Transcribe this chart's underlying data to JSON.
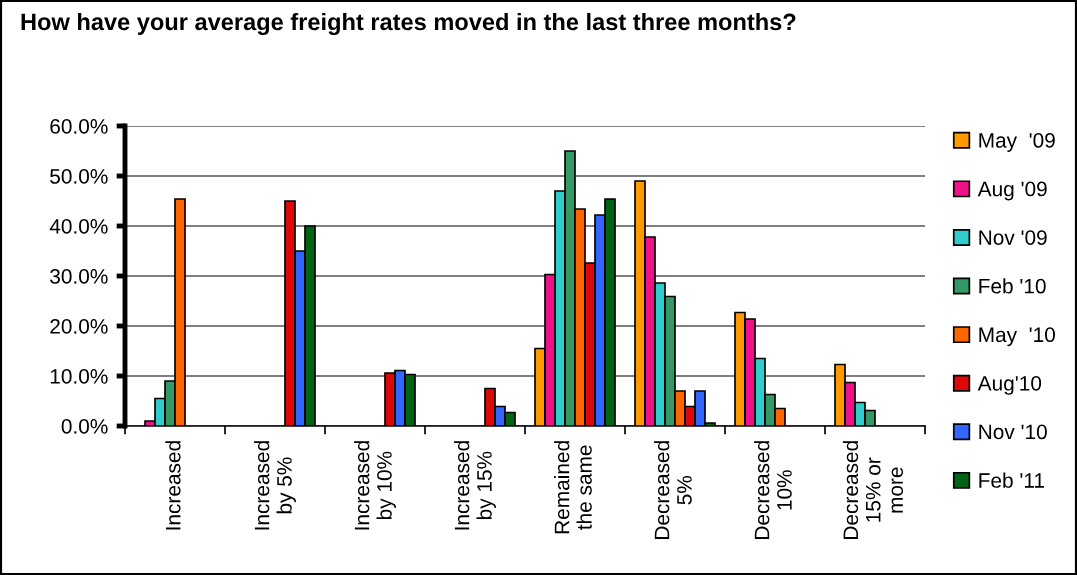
{
  "chart_data": {
    "type": "bar",
    "title": "How have your average freight rates moved in the last three months?",
    "categories": [
      "Increased",
      "Increased\nby 5%",
      "Increased\nby 10%",
      "Increased\nby 15%",
      "Remained\nthe same",
      "Decreased\n5%",
      "Decreased\n10%",
      "Decreased\n15% or\nmore"
    ],
    "series": [
      {
        "name": "May  '09",
        "color": "#ff9900",
        "values": [
          null,
          null,
          null,
          null,
          15.5,
          49.0,
          22.7,
          12.3
        ]
      },
      {
        "name": "Aug '09",
        "color": "#ee1188",
        "values": [
          1.0,
          null,
          null,
          null,
          30.3,
          37.8,
          21.4,
          8.7
        ]
      },
      {
        "name": "Nov '09",
        "color": "#33cccc",
        "values": [
          5.5,
          null,
          null,
          null,
          47.0,
          28.6,
          13.5,
          4.7
        ]
      },
      {
        "name": "Feb '10",
        "color": "#339966",
        "values": [
          9.0,
          null,
          null,
          null,
          55.0,
          25.9,
          6.3,
          3.1
        ]
      },
      {
        "name": "May  '10",
        "color": "#ff6600",
        "values": [
          45.4,
          null,
          null,
          null,
          43.4,
          7.0,
          3.5,
          null
        ]
      },
      {
        "name": "Aug'10",
        "color": "#dd0808",
        "values": [
          null,
          45.0,
          10.6,
          7.5,
          32.6,
          3.9,
          null,
          null
        ]
      },
      {
        "name": "Nov '10",
        "color": "#3366ff",
        "values": [
          null,
          35.0,
          11.1,
          3.9,
          42.2,
          7.0,
          null,
          null
        ]
      },
      {
        "name": "Feb '11",
        "color": "#006414",
        "values": [
          null,
          40.0,
          10.3,
          2.7,
          45.4,
          0.6,
          null,
          null
        ]
      }
    ],
    "ylim": [
      0,
      60
    ],
    "yticks": [
      {
        "value": 0,
        "label": "0.0%"
      },
      {
        "value": 10,
        "label": "10.0%"
      },
      {
        "value": 20,
        "label": "20.0%"
      },
      {
        "value": 30,
        "label": "30.0%"
      },
      {
        "value": 40,
        "label": "40.0%"
      },
      {
        "value": 50,
        "label": "50.0%"
      },
      {
        "value": 60,
        "label": "60.0%"
      }
    ],
    "grid": "y",
    "legend": "right"
  }
}
